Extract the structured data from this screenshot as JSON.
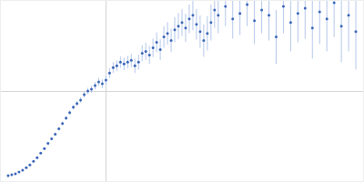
{
  "chart_data": {
    "type": "scatter",
    "tick_labels": false,
    "grid": true,
    "marker": "circle",
    "xlim": [
      0,
      1
    ],
    "ylim": [
      0,
      1
    ],
    "xticks": [
      0.29
    ],
    "yticks": [
      0.5
    ],
    "series": [
      {
        "color": "#3a66b8",
        "x": [
          0.02,
          0.03,
          0.04,
          0.05,
          0.06,
          0.07,
          0.08,
          0.09,
          0.1,
          0.11,
          0.12,
          0.13,
          0.14,
          0.15,
          0.16,
          0.17,
          0.18,
          0.19,
          0.2,
          0.21,
          0.22,
          0.23,
          0.24,
          0.25,
          0.26,
          0.27,
          0.28,
          0.29,
          0.3,
          0.31,
          0.32,
          0.33,
          0.34,
          0.35,
          0.36,
          0.37,
          0.38,
          0.39,
          0.4,
          0.41,
          0.42,
          0.43,
          0.44,
          0.45,
          0.46,
          0.47,
          0.48,
          0.49,
          0.5,
          0.51,
          0.52,
          0.53,
          0.54,
          0.55,
          0.56,
          0.57,
          0.58,
          0.59,
          0.6,
          0.62,
          0.64,
          0.66,
          0.68,
          0.7,
          0.72,
          0.74,
          0.76,
          0.78,
          0.8,
          0.82,
          0.84,
          0.86,
          0.88,
          0.9,
          0.92,
          0.94,
          0.96,
          0.98
        ],
        "values": [
          0.03,
          0.035,
          0.04,
          0.05,
          0.06,
          0.075,
          0.09,
          0.11,
          0.13,
          0.155,
          0.18,
          0.21,
          0.235,
          0.26,
          0.29,
          0.32,
          0.35,
          0.38,
          0.41,
          0.43,
          0.45,
          0.48,
          0.5,
          0.51,
          0.53,
          0.55,
          0.54,
          0.56,
          0.6,
          0.63,
          0.64,
          0.66,
          0.65,
          0.66,
          0.67,
          0.64,
          0.66,
          0.71,
          0.72,
          0.7,
          0.74,
          0.77,
          0.73,
          0.8,
          0.82,
          0.78,
          0.84,
          0.86,
          0.88,
          0.85,
          0.9,
          0.92,
          0.87,
          0.83,
          0.78,
          0.82,
          0.88,
          0.95,
          0.92,
          0.97,
          0.9,
          0.93,
          0.98,
          0.89,
          0.95,
          0.92,
          0.8,
          0.97,
          0.88,
          0.93,
          0.96,
          0.85,
          0.94,
          0.9,
          0.99,
          0.86,
          0.92,
          0.83
        ],
        "errors": [
          0.003,
          0.003,
          0.003,
          0.004,
          0.004,
          0.004,
          0.005,
          0.005,
          0.005,
          0.006,
          0.006,
          0.007,
          0.007,
          0.008,
          0.009,
          0.01,
          0.011,
          0.012,
          0.013,
          0.014,
          0.015,
          0.016,
          0.018,
          0.02,
          0.02,
          0.022,
          0.024,
          0.025,
          0.027,
          0.03,
          0.03,
          0.032,
          0.034,
          0.035,
          0.037,
          0.04,
          0.042,
          0.045,
          0.047,
          0.05,
          0.052,
          0.055,
          0.058,
          0.06,
          0.062,
          0.065,
          0.07,
          0.072,
          0.075,
          0.078,
          0.08,
          0.083,
          0.085,
          0.09,
          0.09,
          0.095,
          0.1,
          0.1,
          0.1,
          0.11,
          0.11,
          0.12,
          0.12,
          0.13,
          0.13,
          0.14,
          0.15,
          0.15,
          0.16,
          0.16,
          0.17,
          0.17,
          0.18,
          0.18,
          0.19,
          0.2,
          0.2,
          0.21
        ]
      }
    ]
  }
}
